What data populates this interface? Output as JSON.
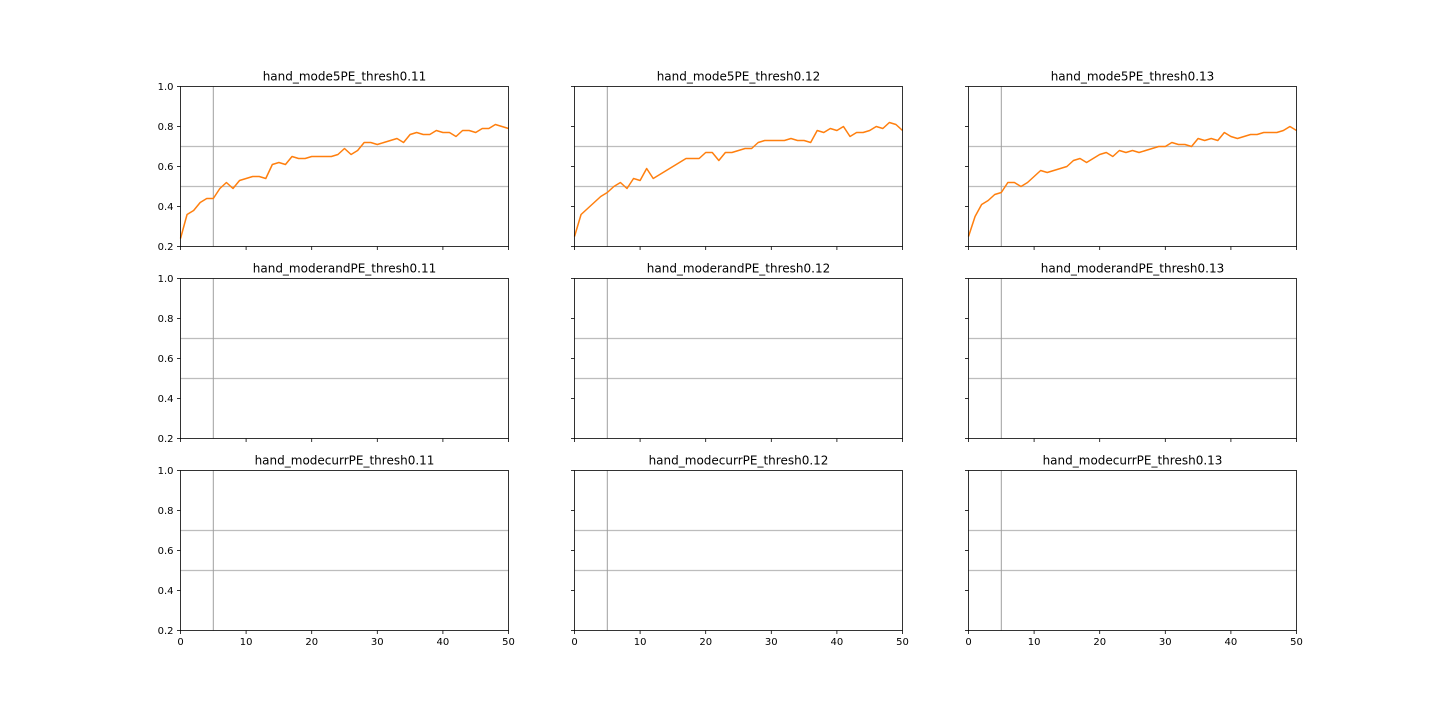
{
  "chart_data": [
    {
      "type": "line",
      "title": "hand_mode5PE_thresh0.11",
      "xlim": [
        0,
        50
      ],
      "ylim": [
        0.2,
        1.0
      ],
      "xticks": [
        0,
        10,
        20,
        30,
        40,
        50
      ],
      "yticks": [
        0.2,
        0.4,
        0.6,
        0.8,
        1.0
      ],
      "show_xtick_labels": false,
      "show_ytick_labels": true,
      "hlines": [
        0.5,
        0.7
      ],
      "vlines": [
        5
      ],
      "series": [
        {
          "color": "#ff7f0e",
          "x": [
            0,
            1,
            2,
            3,
            4,
            5,
            6,
            7,
            8,
            9,
            10,
            11,
            12,
            13,
            14,
            15,
            16,
            17,
            18,
            19,
            20,
            21,
            22,
            23,
            24,
            25,
            26,
            27,
            28,
            29,
            30,
            31,
            32,
            33,
            34,
            35,
            36,
            37,
            38,
            39,
            40,
            41,
            42,
            43,
            44,
            45,
            46,
            47,
            48,
            49,
            50
          ],
          "y": [
            0.24,
            0.36,
            0.38,
            0.42,
            0.44,
            0.44,
            0.49,
            0.52,
            0.49,
            0.53,
            0.54,
            0.55,
            0.55,
            0.54,
            0.61,
            0.62,
            0.61,
            0.65,
            0.64,
            0.64,
            0.65,
            0.65,
            0.65,
            0.65,
            0.66,
            0.69,
            0.66,
            0.68,
            0.72,
            0.72,
            0.71,
            0.72,
            0.73,
            0.74,
            0.72,
            0.76,
            0.77,
            0.76,
            0.76,
            0.78,
            0.77,
            0.77,
            0.75,
            0.78,
            0.78,
            0.77,
            0.79,
            0.79,
            0.81,
            0.8,
            0.79
          ]
        }
      ]
    },
    {
      "type": "line",
      "title": "hand_mode5PE_thresh0.12",
      "xlim": [
        0,
        50
      ],
      "ylim": [
        0.2,
        1.0
      ],
      "xticks": [
        0,
        10,
        20,
        30,
        40,
        50
      ],
      "yticks": [
        0.2,
        0.4,
        0.6,
        0.8,
        1.0
      ],
      "show_xtick_labels": false,
      "show_ytick_labels": false,
      "hlines": [
        0.5,
        0.7
      ],
      "vlines": [
        5
      ],
      "series": [
        {
          "color": "#ff7f0e",
          "x": [
            0,
            1,
            2,
            3,
            4,
            5,
            6,
            7,
            8,
            9,
            10,
            11,
            12,
            13,
            14,
            15,
            16,
            17,
            18,
            19,
            20,
            21,
            22,
            23,
            24,
            25,
            26,
            27,
            28,
            29,
            30,
            31,
            32,
            33,
            34,
            35,
            36,
            37,
            38,
            39,
            40,
            41,
            42,
            43,
            44,
            45,
            46,
            47,
            48,
            49,
            50
          ],
          "y": [
            0.25,
            0.36,
            0.39,
            0.42,
            0.45,
            0.47,
            0.5,
            0.52,
            0.49,
            0.54,
            0.53,
            0.59,
            0.54,
            0.56,
            0.58,
            0.6,
            0.62,
            0.64,
            0.64,
            0.64,
            0.67,
            0.67,
            0.63,
            0.67,
            0.67,
            0.68,
            0.69,
            0.69,
            0.72,
            0.73,
            0.73,
            0.73,
            0.73,
            0.74,
            0.73,
            0.73,
            0.72,
            0.78,
            0.77,
            0.79,
            0.78,
            0.8,
            0.75,
            0.77,
            0.77,
            0.78,
            0.8,
            0.79,
            0.82,
            0.81,
            0.78
          ]
        }
      ]
    },
    {
      "type": "line",
      "title": "hand_mode5PE_thresh0.13",
      "xlim": [
        0,
        50
      ],
      "ylim": [
        0.2,
        1.0
      ],
      "xticks": [
        0,
        10,
        20,
        30,
        40,
        50
      ],
      "yticks": [
        0.2,
        0.4,
        0.6,
        0.8,
        1.0
      ],
      "show_xtick_labels": false,
      "show_ytick_labels": false,
      "hlines": [
        0.5,
        0.7
      ],
      "vlines": [
        5
      ],
      "series": [
        {
          "color": "#ff7f0e",
          "x": [
            0,
            1,
            2,
            3,
            4,
            5,
            6,
            7,
            8,
            9,
            10,
            11,
            12,
            13,
            14,
            15,
            16,
            17,
            18,
            19,
            20,
            21,
            22,
            23,
            24,
            25,
            26,
            27,
            28,
            29,
            30,
            31,
            32,
            33,
            34,
            35,
            36,
            37,
            38,
            39,
            40,
            41,
            42,
            43,
            44,
            45,
            46,
            47,
            48,
            49,
            50
          ],
          "y": [
            0.25,
            0.35,
            0.41,
            0.43,
            0.46,
            0.47,
            0.52,
            0.52,
            0.5,
            0.52,
            0.55,
            0.58,
            0.57,
            0.58,
            0.59,
            0.6,
            0.63,
            0.64,
            0.62,
            0.64,
            0.66,
            0.67,
            0.65,
            0.68,
            0.67,
            0.68,
            0.67,
            0.68,
            0.69,
            0.7,
            0.7,
            0.72,
            0.71,
            0.71,
            0.7,
            0.74,
            0.73,
            0.74,
            0.73,
            0.77,
            0.75,
            0.74,
            0.75,
            0.76,
            0.76,
            0.77,
            0.77,
            0.77,
            0.78,
            0.8,
            0.78
          ]
        }
      ]
    },
    {
      "type": "line",
      "title": "hand_moderandPE_thresh0.11",
      "xlim": [
        0,
        50
      ],
      "ylim": [
        0.2,
        1.0
      ],
      "xticks": [
        0,
        10,
        20,
        30,
        40,
        50
      ],
      "yticks": [
        0.2,
        0.4,
        0.6,
        0.8,
        1.0
      ],
      "show_xtick_labels": false,
      "show_ytick_labels": true,
      "hlines": [
        0.5,
        0.7
      ],
      "vlines": [
        5
      ],
      "series": []
    },
    {
      "type": "line",
      "title": "hand_moderandPE_thresh0.12",
      "xlim": [
        0,
        50
      ],
      "ylim": [
        0.2,
        1.0
      ],
      "xticks": [
        0,
        10,
        20,
        30,
        40,
        50
      ],
      "yticks": [
        0.2,
        0.4,
        0.6,
        0.8,
        1.0
      ],
      "show_xtick_labels": false,
      "show_ytick_labels": false,
      "hlines": [
        0.5,
        0.7
      ],
      "vlines": [
        5
      ],
      "series": []
    },
    {
      "type": "line",
      "title": "hand_moderandPE_thresh0.13",
      "xlim": [
        0,
        50
      ],
      "ylim": [
        0.2,
        1.0
      ],
      "xticks": [
        0,
        10,
        20,
        30,
        40,
        50
      ],
      "yticks": [
        0.2,
        0.4,
        0.6,
        0.8,
        1.0
      ],
      "show_xtick_labels": false,
      "show_ytick_labels": false,
      "hlines": [
        0.5,
        0.7
      ],
      "vlines": [
        5
      ],
      "series": []
    },
    {
      "type": "line",
      "title": "hand_modecurrPE_thresh0.11",
      "xlim": [
        0,
        50
      ],
      "ylim": [
        0.2,
        1.0
      ],
      "xticks": [
        0,
        10,
        20,
        30,
        40,
        50
      ],
      "yticks": [
        0.2,
        0.4,
        0.6,
        0.8,
        1.0
      ],
      "show_xtick_labels": true,
      "show_ytick_labels": true,
      "hlines": [
        0.5,
        0.7
      ],
      "vlines": [
        5
      ],
      "series": []
    },
    {
      "type": "line",
      "title": "hand_modecurrPE_thresh0.12",
      "xlim": [
        0,
        50
      ],
      "ylim": [
        0.2,
        1.0
      ],
      "xticks": [
        0,
        10,
        20,
        30,
        40,
        50
      ],
      "yticks": [
        0.2,
        0.4,
        0.6,
        0.8,
        1.0
      ],
      "show_xtick_labels": true,
      "show_ytick_labels": false,
      "hlines": [
        0.5,
        0.7
      ],
      "vlines": [
        5
      ],
      "series": []
    },
    {
      "type": "line",
      "title": "hand_modecurrPE_thresh0.13",
      "xlim": [
        0,
        50
      ],
      "ylim": [
        0.2,
        1.0
      ],
      "xticks": [
        0,
        10,
        20,
        30,
        40,
        50
      ],
      "yticks": [
        0.2,
        0.4,
        0.6,
        0.8,
        1.0
      ],
      "show_xtick_labels": true,
      "show_ytick_labels": false,
      "hlines": [
        0.5,
        0.7
      ],
      "vlines": [
        5
      ],
      "series": []
    }
  ]
}
